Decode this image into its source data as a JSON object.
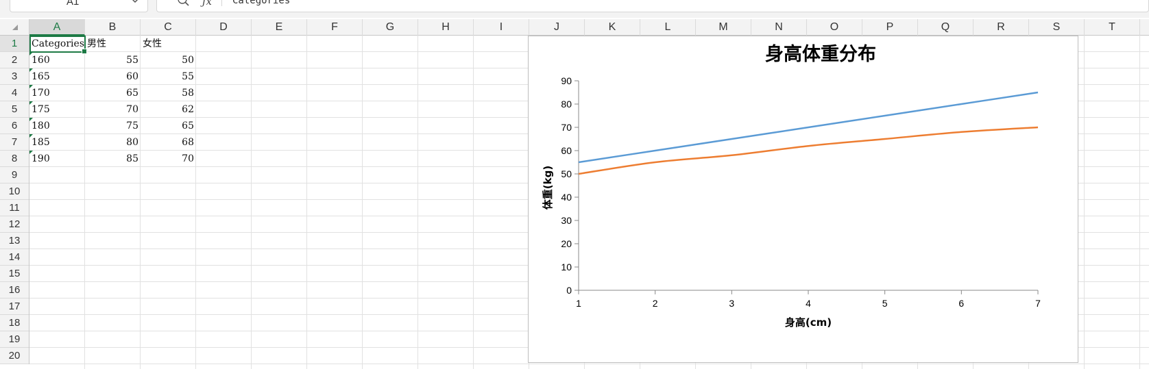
{
  "formula_bar": {
    "cell_ref": "A1",
    "formula": "Categories"
  },
  "columns": [
    "A",
    "B",
    "C",
    "D",
    "E",
    "F",
    "G",
    "H",
    "I",
    "J",
    "K",
    "L",
    "M",
    "N",
    "O",
    "P",
    "Q",
    "R",
    "S",
    "T"
  ],
  "rows": [
    "1",
    "2",
    "3",
    "4",
    "5",
    "6",
    "7",
    "8",
    "9",
    "10",
    "11",
    "12",
    "13",
    "14",
    "15",
    "16",
    "17",
    "18",
    "19",
    "20"
  ],
  "active_cell": {
    "col": "A",
    "row": "1"
  },
  "sheet": {
    "header": [
      "Categories",
      "男性",
      "女性"
    ],
    "data": [
      [
        "160",
        "55",
        "50"
      ],
      [
        "165",
        "60",
        "55"
      ],
      [
        "170",
        "65",
        "58"
      ],
      [
        "175",
        "70",
        "62"
      ],
      [
        "180",
        "75",
        "65"
      ],
      [
        "185",
        "80",
        "68"
      ],
      [
        "190",
        "85",
        "70"
      ]
    ]
  },
  "chart_data": {
    "type": "line",
    "title": "身高体重分布",
    "xlabel": "身高(cm)",
    "ylabel": "体重(kg)",
    "x": [
      1,
      2,
      3,
      4,
      5,
      6,
      7
    ],
    "xlim": [
      1,
      7
    ],
    "ylim": [
      0,
      90
    ],
    "yticks": [
      0,
      10,
      20,
      30,
      40,
      50,
      60,
      70,
      80,
      90
    ],
    "grid": false,
    "legend": "none",
    "series": [
      {
        "values": [
          55,
          60,
          65,
          70,
          75,
          80,
          85
        ],
        "color": "#5b9bd5"
      },
      {
        "values": [
          50,
          55,
          58,
          62,
          65,
          68,
          70
        ],
        "color": "#ed7d31"
      }
    ]
  }
}
